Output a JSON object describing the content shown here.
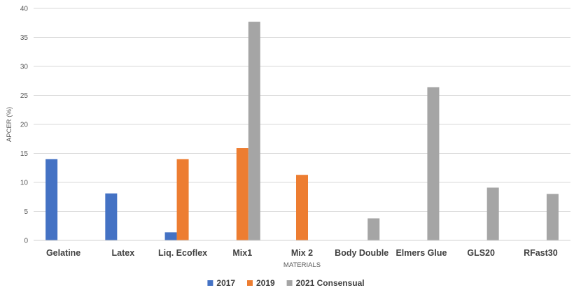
{
  "chart_data": {
    "type": "bar",
    "title": "",
    "xlabel": "MATERIALS",
    "ylabel": "APCER (%)",
    "ylim": [
      0,
      40
    ],
    "yticks": [
      0,
      5,
      10,
      15,
      20,
      25,
      30,
      35,
      40
    ],
    "grid": true,
    "legend_position": "bottom",
    "categories": [
      "Gelatine",
      "Latex",
      "Liq. Ecoflex",
      "Mix1",
      "Mix 2",
      "Body Double",
      "Elmers Glue",
      "GLS20",
      "RFast30"
    ],
    "series": [
      {
        "name": "2017",
        "color": "#4472C4",
        "values": [
          14,
          8.1,
          1.4,
          null,
          null,
          null,
          null,
          null,
          null
        ]
      },
      {
        "name": "2019",
        "color": "#ED7D31",
        "values": [
          null,
          null,
          14,
          15.9,
          11.3,
          null,
          null,
          null,
          null
        ]
      },
      {
        "name": "2021 Consensual",
        "color": "#A5A5A5",
        "values": [
          null,
          null,
          null,
          37.7,
          null,
          3.8,
          26.4,
          9.1,
          8.0
        ]
      }
    ]
  }
}
